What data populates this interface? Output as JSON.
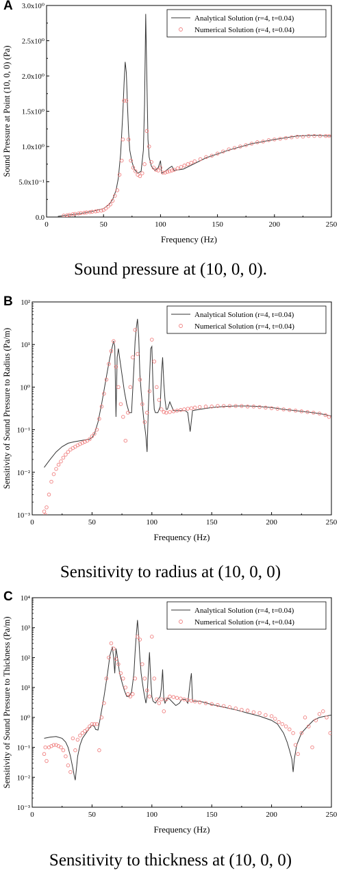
{
  "panels": [
    {
      "letter": "A",
      "caption": "Sound pressure at (10, 0, 0)."
    },
    {
      "letter": "B",
      "caption": "Sensitivity to radius at (10, 0, 0)"
    },
    {
      "letter": "C",
      "caption": "Sensitivity to thickness at (10, 0, 0)"
    }
  ],
  "colors": {
    "analytical": "#333333",
    "numerical": "#f08080"
  },
  "chart_data": [
    {
      "type": "line",
      "xlabel": "Frequency (Hz)",
      "ylabel": "Sound Pressure at Point (10, 0, 0) (Pa)",
      "xlim": [
        0,
        250
      ],
      "ylim": [
        0,
        3.0
      ],
      "yscale": "linear",
      "xticks": [
        0,
        50,
        100,
        150,
        200,
        250
      ],
      "xtick_labels": [
        "0",
        "50",
        "100",
        "150",
        "200",
        "250"
      ],
      "yticks": [
        0,
        0.5,
        1.0,
        1.5,
        2.0,
        2.5,
        3.0
      ],
      "ytick_labels": [
        "0.0",
        "5.0x10⁻¹",
        "1.0x10⁰",
        "1.5x10⁰",
        "2.0x10⁰",
        "2.5x10⁰",
        "3.0x10⁰"
      ],
      "legend_position": "top-right",
      "series": [
        {
          "name": "Analytical Solution (r=4, t=0.04)",
          "style": "line",
          "x": [
            10,
            20,
            30,
            40,
            50,
            55,
            58,
            61,
            63,
            65,
            67,
            68,
            69,
            70,
            71,
            72,
            73,
            75,
            77,
            80,
            83,
            85,
            86,
            87,
            88,
            89,
            90,
            92,
            95,
            98,
            100,
            101,
            103,
            105,
            108,
            110,
            112,
            120,
            140,
            160,
            180,
            200,
            220,
            235,
            250
          ],
          "y": [
            0.01,
            0.03,
            0.05,
            0.08,
            0.12,
            0.18,
            0.25,
            0.38,
            0.55,
            0.9,
            1.5,
            1.9,
            2.2,
            2.05,
            1.6,
            1.2,
            0.95,
            0.78,
            0.68,
            0.62,
            0.65,
            0.95,
            1.6,
            2.88,
            2.0,
            1.1,
            0.85,
            0.72,
            0.66,
            0.7,
            0.8,
            0.62,
            0.64,
            0.66,
            0.7,
            0.72,
            0.66,
            0.68,
            0.84,
            0.95,
            1.04,
            1.1,
            1.15,
            1.16,
            1.15
          ]
        },
        {
          "name": "Numerical Solution (r=4, t=0.04)",
          "style": "marker",
          "x": [
            15,
            18,
            20,
            23,
            25,
            28,
            30,
            33,
            35,
            38,
            40,
            43,
            45,
            48,
            50,
            52,
            54,
            56,
            58,
            60,
            62,
            64,
            66,
            67,
            68,
            70,
            72,
            74,
            76,
            78,
            80,
            82,
            84,
            86,
            88,
            90,
            92,
            94,
            96,
            98,
            100,
            102,
            104,
            106,
            108,
            110,
            112,
            115,
            118,
            121,
            124,
            127,
            130,
            135,
            140,
            145,
            150,
            155,
            160,
            165,
            170,
            175,
            180,
            185,
            190,
            195,
            200,
            205,
            210,
            215,
            220,
            225,
            230,
            235,
            240,
            245,
            248
          ],
          "y": [
            0.02,
            0.025,
            0.03,
            0.04,
            0.045,
            0.05,
            0.055,
            0.06,
            0.065,
            0.07,
            0.075,
            0.08,
            0.085,
            0.09,
            0.1,
            0.12,
            0.15,
            0.18,
            0.23,
            0.3,
            0.38,
            0.6,
            0.8,
            1.1,
            1.65,
            1.65,
            1.1,
            0.8,
            0.7,
            0.65,
            0.6,
            0.58,
            0.62,
            0.75,
            1.22,
            1.0,
            0.78,
            0.7,
            0.67,
            0.66,
            0.7,
            0.63,
            0.63,
            0.64,
            0.65,
            0.66,
            0.67,
            0.69,
            0.71,
            0.73,
            0.75,
            0.77,
            0.79,
            0.82,
            0.85,
            0.87,
            0.9,
            0.93,
            0.96,
            0.98,
            1.0,
            1.02,
            1.04,
            1.06,
            1.07,
            1.09,
            1.1,
            1.11,
            1.12,
            1.13,
            1.14,
            1.14,
            1.15,
            1.15,
            1.15,
            1.15,
            1.15
          ]
        }
      ]
    },
    {
      "type": "line",
      "xlabel": "Frequency (Hz)",
      "ylabel": "Sensitivity of Sound Pressure to Radius (Pa/m)",
      "xlim": [
        0,
        250
      ],
      "ylim": [
        0.001,
        100
      ],
      "yscale": "log",
      "xticks": [
        0,
        50,
        100,
        150,
        200,
        250
      ],
      "xtick_labels": [
        "0",
        "50",
        "100",
        "150",
        "200",
        "250"
      ],
      "yticks": [
        0.001,
        0.01,
        0.1,
        1,
        10,
        100
      ],
      "ytick_labels": [
        "10⁻³",
        "10⁻²",
        "10⁻¹",
        "10⁰",
        "10¹",
        "10²"
      ],
      "legend_position": "top-right",
      "series": [
        {
          "name": "Analytical Solution (r=4, t=0.04)",
          "style": "line",
          "x": [
            10,
            15,
            20,
            25,
            30,
            35,
            40,
            45,
            48,
            50,
            52,
            55,
            58,
            61,
            63,
            65,
            67,
            68,
            69,
            70,
            71,
            72,
            73,
            75,
            77,
            79,
            81,
            83,
            85,
            86,
            87,
            88,
            89,
            90,
            91,
            93,
            95,
            96,
            97,
            98,
            99,
            100,
            101,
            102,
            103,
            105,
            107,
            108,
            109,
            110,
            111,
            112,
            113,
            115,
            118,
            120,
            125,
            128,
            130,
            132,
            134,
            140,
            150,
            160,
            170,
            180,
            190,
            200,
            210,
            220,
            230,
            240,
            250
          ],
          "y": [
            0.013,
            0.02,
            0.03,
            0.04,
            0.048,
            0.052,
            0.055,
            0.058,
            0.06,
            0.065,
            0.08,
            0.15,
            0.4,
            1.2,
            2.5,
            5.0,
            9.0,
            12.0,
            9.0,
            0.2,
            5.0,
            8.0,
            5.0,
            2.0,
            0.8,
            0.4,
            0.25,
            0.25,
            3.0,
            12.0,
            25.0,
            40.0,
            15.0,
            2.0,
            0.8,
            0.2,
            0.07,
            0.03,
            0.3,
            1.5,
            8.0,
            9.0,
            1.0,
            0.3,
            0.25,
            0.25,
            0.35,
            2.0,
            5.0,
            1.2,
            0.5,
            0.3,
            0.3,
            0.45,
            0.28,
            0.28,
            0.28,
            0.28,
            0.25,
            0.09,
            0.28,
            0.3,
            0.33,
            0.35,
            0.36,
            0.36,
            0.35,
            0.33,
            0.3,
            0.28,
            0.26,
            0.24,
            0.21
          ]
        },
        {
          "name": "Numerical Solution (r=4, t=0.04)",
          "style": "marker",
          "x": [
            10,
            11,
            12,
            14,
            16,
            18,
            20,
            22,
            24,
            26,
            28,
            30,
            32,
            34,
            36,
            38,
            40,
            42,
            44,
            46,
            48,
            50,
            52,
            54,
            56,
            58,
            60,
            62,
            64,
            66,
            68,
            70,
            72,
            74,
            76,
            78,
            80,
            82,
            84,
            86,
            88,
            90,
            92,
            94,
            96,
            98,
            100,
            102,
            104,
            106,
            108,
            110,
            112,
            115,
            118,
            121,
            124,
            127,
            130,
            133,
            136,
            140,
            145,
            150,
            155,
            160,
            165,
            170,
            175,
            180,
            185,
            190,
            195,
            200,
            205,
            210,
            215,
            220,
            225,
            230,
            235,
            240,
            245,
            248
          ],
          "y": [
            0.0012,
            0.001,
            0.0015,
            0.003,
            0.006,
            0.009,
            0.012,
            0.015,
            0.018,
            0.022,
            0.026,
            0.03,
            0.034,
            0.037,
            0.04,
            0.043,
            0.046,
            0.049,
            0.052,
            0.055,
            0.06,
            0.07,
            0.08,
            0.1,
            0.18,
            0.35,
            0.7,
            1.5,
            3.5,
            7.0,
            12.0,
            3.0,
            1.0,
            0.4,
            0.2,
            0.055,
            0.25,
            1.0,
            5.0,
            22.0,
            6.0,
            1.5,
            0.4,
            0.15,
            0.25,
            0.8,
            13.0,
            4.0,
            1.0,
            0.5,
            0.3,
            0.26,
            0.25,
            0.26,
            0.27,
            0.28,
            0.29,
            0.3,
            0.31,
            0.32,
            0.33,
            0.34,
            0.35,
            0.35,
            0.36,
            0.36,
            0.36,
            0.36,
            0.36,
            0.35,
            0.35,
            0.34,
            0.33,
            0.32,
            0.31,
            0.3,
            0.29,
            0.28,
            0.27,
            0.26,
            0.25,
            0.24,
            0.22,
            0.2
          ]
        }
      ]
    },
    {
      "type": "line",
      "xlabel": "Frequency (Hz)",
      "ylabel": "Sensitivity of Sound Pressure to Thickness (Pa/m)",
      "xlim": [
        0,
        250
      ],
      "ylim": [
        0.001,
        10000
      ],
      "yscale": "log",
      "xticks": [
        0,
        50,
        100,
        150,
        200,
        250
      ],
      "xtick_labels": [
        "0",
        "50",
        "100",
        "150",
        "200",
        "250"
      ],
      "yticks": [
        0.001,
        0.01,
        0.1,
        1,
        10,
        100,
        1000,
        10000
      ],
      "ytick_labels": [
        "10⁻³",
        "10⁻²",
        "10⁻¹",
        "10⁰",
        "10¹",
        "10²",
        "10³",
        "10⁴"
      ],
      "legend_position": "top-right",
      "series": [
        {
          "name": "Analytical Solution (r=4, t=0.04)",
          "style": "line",
          "x": [
            10,
            15,
            20,
            25,
            28,
            30,
            32,
            34,
            35,
            36,
            37,
            38,
            40,
            42,
            45,
            48,
            50,
            52,
            53,
            55,
            57,
            60,
            63,
            65,
            67,
            68,
            69,
            70,
            71,
            72,
            73,
            75,
            77,
            79,
            81,
            83,
            85,
            86,
            87,
            88,
            89,
            90,
            91,
            93,
            95,
            96,
            97,
            98,
            99,
            100,
            101,
            103,
            105,
            107,
            108,
            109,
            110,
            111,
            113,
            115,
            118,
            120,
            123,
            125,
            128,
            130,
            132,
            133,
            134,
            140,
            150,
            160,
            170,
            180,
            190,
            200,
            205,
            210,
            213,
            215,
            217,
            218,
            219,
            221,
            225,
            230,
            235,
            240,
            245,
            250
          ],
          "y": [
            0.2,
            0.22,
            0.23,
            0.2,
            0.15,
            0.1,
            0.05,
            0.02,
            0.012,
            0.008,
            0.02,
            0.05,
            0.12,
            0.2,
            0.3,
            0.45,
            0.55,
            0.5,
            0.4,
            0.38,
            1.0,
            5.0,
            30.0,
            120.0,
            230.0,
            100.0,
            30.0,
            200.0,
            120.0,
            60.0,
            30.0,
            15.0,
            8.0,
            5.0,
            5.0,
            7.0,
            30.0,
            150.0,
            600.0,
            1800.0,
            500.0,
            100.0,
            30.0,
            8.0,
            3.0,
            5.0,
            30.0,
            150.0,
            20.0,
            5.0,
            3.5,
            3.0,
            4.0,
            5.0,
            10.0,
            40.0,
            4.0,
            3.0,
            4.5,
            4.0,
            3.0,
            2.5,
            3.0,
            4.0,
            4.0,
            3.0,
            15.0,
            30.0,
            3.5,
            3.5,
            2.7,
            2.2,
            1.8,
            1.4,
            1.1,
            0.8,
            0.6,
            0.3,
            0.15,
            0.08,
            0.04,
            0.015,
            0.04,
            0.12,
            0.3,
            0.5,
            0.8,
            1.0,
            1.1,
            1.2
          ]
        },
        {
          "name": "Numerical Solution (r=4, t=0.04)",
          "style": "marker",
          "x": [
            10,
            11,
            12,
            14,
            16,
            18,
            20,
            22,
            24,
            26,
            28,
            30,
            32,
            34,
            36,
            38,
            40,
            42,
            44,
            46,
            48,
            50,
            52,
            54,
            56,
            58,
            60,
            62,
            64,
            66,
            68,
            70,
            72,
            74,
            76,
            78,
            80,
            82,
            84,
            86,
            88,
            90,
            92,
            94,
            96,
            98,
            100,
            102,
            104,
            106,
            108,
            110,
            112,
            115,
            118,
            121,
            124,
            127,
            130,
            133,
            136,
            140,
            145,
            150,
            155,
            160,
            165,
            170,
            175,
            180,
            185,
            190,
            195,
            200,
            203,
            206,
            209,
            212,
            215,
            218,
            220,
            222,
            225,
            228,
            231,
            234,
            237,
            240,
            243,
            246,
            249
          ],
          "y": [
            0.06,
            0.1,
            0.035,
            0.1,
            0.11,
            0.12,
            0.12,
            0.11,
            0.1,
            0.08,
            0.05,
            0.025,
            0.015,
            0.2,
            0.08,
            0.18,
            0.25,
            0.3,
            0.35,
            0.4,
            0.5,
            0.6,
            0.6,
            0.6,
            0.08,
            1.0,
            3.0,
            20.0,
            100.0,
            300.0,
            200.0,
            90.0,
            60.0,
            30.0,
            20.0,
            10.0,
            6.0,
            5.0,
            6.0,
            20.0,
            500.0,
            400.0,
            60.0,
            20.0,
            8.0,
            5.0,
            500.0,
            20.0,
            4.0,
            3.0,
            4.0,
            1.6,
            4.0,
            5.0,
            4.8,
            4.5,
            4.3,
            4.0,
            3.8,
            3.6,
            3.4,
            3.2,
            3.0,
            2.8,
            2.6,
            2.4,
            2.2,
            2.0,
            1.8,
            1.7,
            1.5,
            1.4,
            1.2,
            1.1,
            0.9,
            0.7,
            0.6,
            0.5,
            0.4,
            0.3,
            0.12,
            0.06,
            0.3,
            1.0,
            0.5,
            0.1,
            0.8,
            1.3,
            1.6,
            1.0,
            0.3
          ]
        }
      ]
    }
  ]
}
